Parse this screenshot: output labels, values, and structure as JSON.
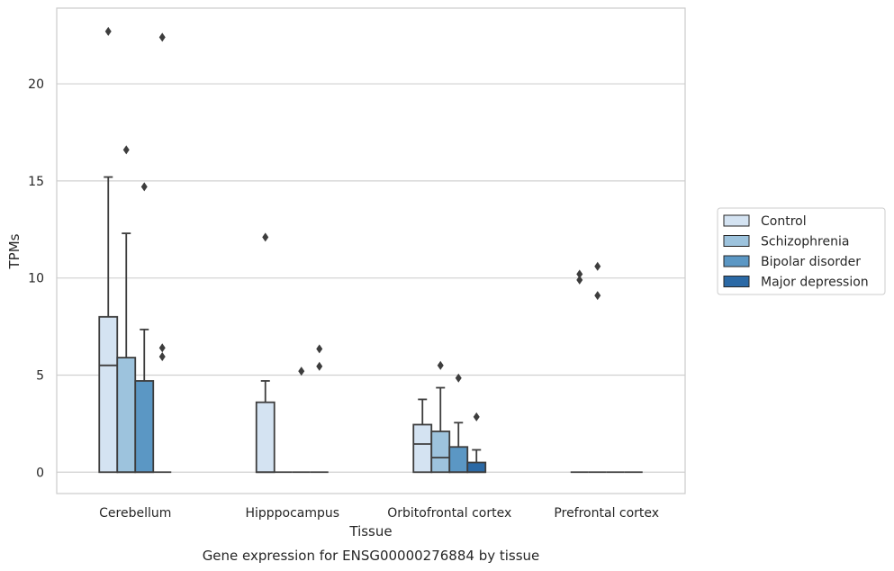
{
  "chart_data": {
    "type": "box",
    "title": "",
    "caption": "Gene expression for ENSG00000276884 by tissue",
    "xlabel": "Tissue",
    "ylabel": "TPMs",
    "ylim": [
      -1.1,
      23.9
    ],
    "yticks": [
      0,
      5,
      10,
      15,
      20
    ],
    "grid": "horizontal",
    "legend_position": "right",
    "categories": [
      "Cerebellum",
      "Hipppocampus",
      "Orbitofrontal cortex",
      "Prefrontal cortex"
    ],
    "series": [
      {
        "name": "Control",
        "color": "#d4e3f2",
        "boxes": [
          {
            "q1": 0,
            "median": 5.5,
            "q3": 8.0,
            "whisker_low": 0,
            "whisker_high": 15.2,
            "outliers": [
              22.7
            ]
          },
          {
            "q1": 0,
            "median": 0,
            "q3": 3.6,
            "whisker_low": 0,
            "whisker_high": 4.7,
            "outliers": [
              12.1
            ]
          },
          {
            "q1": 0,
            "median": 1.45,
            "q3": 2.45,
            "whisker_low": 0,
            "whisker_high": 3.75,
            "outliers": []
          },
          {
            "q1": 0,
            "median": 0,
            "q3": 0,
            "whisker_low": 0,
            "whisker_high": 0,
            "outliers": [
              9.9,
              10.2
            ]
          }
        ]
      },
      {
        "name": "Schizophrenia",
        "color": "#9dc3dd",
        "boxes": [
          {
            "q1": 0,
            "median": 0,
            "q3": 5.9,
            "whisker_low": 0,
            "whisker_high": 12.3,
            "outliers": [
              16.6
            ]
          },
          {
            "q1": 0,
            "median": 0,
            "q3": 0,
            "whisker_low": 0,
            "whisker_high": 0,
            "outliers": []
          },
          {
            "q1": 0,
            "median": 0.75,
            "q3": 2.1,
            "whisker_low": 0,
            "whisker_high": 4.35,
            "outliers": [
              5.5
            ]
          },
          {
            "q1": 0,
            "median": 0,
            "q3": 0,
            "whisker_low": 0,
            "whisker_high": 0,
            "outliers": [
              9.1,
              10.6
            ]
          }
        ]
      },
      {
        "name": "Bipolar disorder",
        "color": "#5b97c4",
        "boxes": [
          {
            "q1": 0,
            "median": 0,
            "q3": 4.7,
            "whisker_low": 0,
            "whisker_high": 7.35,
            "outliers": [
              14.7
            ]
          },
          {
            "q1": 0,
            "median": 0,
            "q3": 0,
            "whisker_low": 0,
            "whisker_high": 0,
            "outliers": [
              5.2
            ]
          },
          {
            "q1": 0,
            "median": 0,
            "q3": 1.3,
            "whisker_low": 0,
            "whisker_high": 2.55,
            "outliers": [
              4.85
            ]
          },
          {
            "q1": 0,
            "median": 0,
            "q3": 0,
            "whisker_low": 0,
            "whisker_high": 0,
            "outliers": []
          }
        ]
      },
      {
        "name": "Major depression",
        "color": "#2b69a5",
        "boxes": [
          {
            "q1": 0,
            "median": 0,
            "q3": 0,
            "whisker_low": 0,
            "whisker_high": 0,
            "outliers": [
              22.4,
              6.4,
              5.95
            ]
          },
          {
            "q1": 0,
            "median": 0,
            "q3": 0,
            "whisker_low": 0,
            "whisker_high": 0,
            "outliers": [
              6.35,
              5.45
            ]
          },
          {
            "q1": 0,
            "median": 0,
            "q3": 0.5,
            "whisker_low": 0,
            "whisker_high": 1.15,
            "outliers": [
              2.85
            ]
          },
          {
            "q1": 0,
            "median": 0,
            "q3": 0,
            "whisker_low": 0,
            "whisker_high": 0,
            "outliers": []
          }
        ]
      }
    ]
  }
}
